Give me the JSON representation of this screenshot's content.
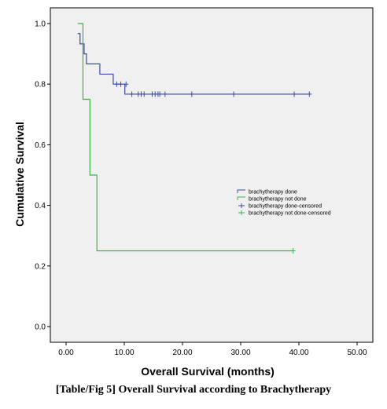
{
  "chart_data": {
    "type": "line",
    "subtype": "kaplan-meier",
    "xlabel": "Overall Survival (months)",
    "ylabel": "Cumulative Survival",
    "xlim": [
      0,
      50
    ],
    "ylim": [
      0,
      1.0
    ],
    "x_ticks": [
      "0.00",
      "10.00",
      "20.00",
      "30.00",
      "40.00",
      "50.00"
    ],
    "y_ticks": [
      "0.0",
      "0.2",
      "0.4",
      "0.6",
      "0.8",
      "1.0"
    ],
    "grid": false,
    "legend_position": "right-middle",
    "plot_background": "#f0f0f0",
    "series": [
      {
        "name": "brachytherapy done",
        "color": "#3b4ba8",
        "steps": [
          [
            2.0,
            0.967
          ],
          [
            2.4,
            0.933
          ],
          [
            3.1,
            0.9
          ],
          [
            3.5,
            0.867
          ],
          [
            5.8,
            0.833
          ],
          [
            8.1,
            0.8
          ],
          [
            10.1,
            0.767
          ],
          [
            41.8,
            0.767
          ]
        ],
        "censored": [
          [
            8.7,
            0.8
          ],
          [
            9.4,
            0.8
          ],
          [
            10.3,
            0.8
          ],
          [
            11.3,
            0.767
          ],
          [
            12.4,
            0.767
          ],
          [
            12.9,
            0.767
          ],
          [
            13.4,
            0.767
          ],
          [
            14.8,
            0.767
          ],
          [
            15.3,
            0.767
          ],
          [
            15.8,
            0.767
          ],
          [
            16.1,
            0.767
          ],
          [
            17.0,
            0.767
          ],
          [
            21.6,
            0.767
          ],
          [
            28.8,
            0.767
          ],
          [
            39.2,
            0.767
          ],
          [
            41.8,
            0.767
          ]
        ]
      },
      {
        "name": "brachytherapy not done",
        "color": "#3cb44b",
        "steps": [
          [
            2.0,
            1.0
          ],
          [
            2.9,
            0.75
          ],
          [
            4.1,
            0.5
          ],
          [
            5.3,
            0.25
          ],
          [
            39.0,
            0.25
          ]
        ],
        "censored": [
          [
            39.0,
            0.25
          ]
        ]
      }
    ],
    "legend": [
      {
        "label": "brachytherapy done",
        "color": "#3b4ba8",
        "symbol": "step"
      },
      {
        "label": "brachytherapy not done",
        "color": "#3cb44b",
        "symbol": "step"
      },
      {
        "label": "brachytherapy done-censored",
        "color": "#3b4ba8",
        "symbol": "plus"
      },
      {
        "label": "brachytherapy not done-censored",
        "color": "#3cb44b",
        "symbol": "plus"
      }
    ]
  },
  "caption": "[Table/Fig 5] Overall Survival according to Brachytherapy"
}
